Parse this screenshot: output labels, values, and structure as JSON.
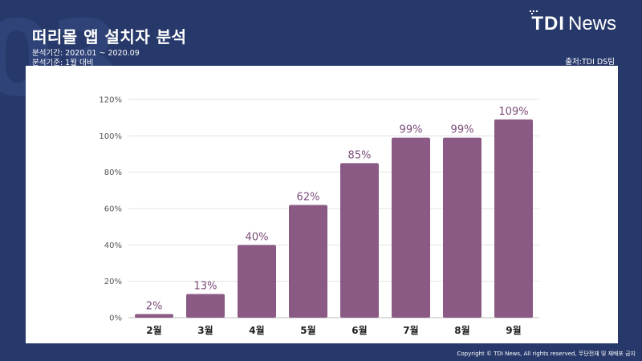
{
  "header": {
    "title": "떠리몰 앱 설치자 분석",
    "period": "분석기간: 2020.01 ~ 2020.09",
    "basis": "분석기준: 1월 대비",
    "source": "출처:TDI DS팀"
  },
  "logo": {
    "brand": "TDI",
    "suffix": "News"
  },
  "watermark": "03",
  "footer": {
    "copyright": "Copyright © TDI News, All rights reserved, 무단전재 및 재배포 금지"
  },
  "colors": {
    "background": "#27396a",
    "bar": "#8a5a85",
    "data_label": "#7a4c78"
  },
  "chart_data": {
    "type": "bar",
    "categories": [
      "2월",
      "3월",
      "4월",
      "5월",
      "6월",
      "7월",
      "8월",
      "9월"
    ],
    "values": [
      2,
      13,
      40,
      62,
      85,
      99,
      99,
      109
    ],
    "data_labels": [
      "2%",
      "13%",
      "40%",
      "62%",
      "85%",
      "99%",
      "99%",
      "109%"
    ],
    "y_ticks": [
      0,
      20,
      40,
      60,
      80,
      100,
      120
    ],
    "y_tick_labels": [
      "0%",
      "20%",
      "40%",
      "60%",
      "80%",
      "100%",
      "120%"
    ],
    "ylim": [
      0,
      120
    ],
    "grid": true,
    "title": "",
    "xlabel": "",
    "ylabel": ""
  }
}
